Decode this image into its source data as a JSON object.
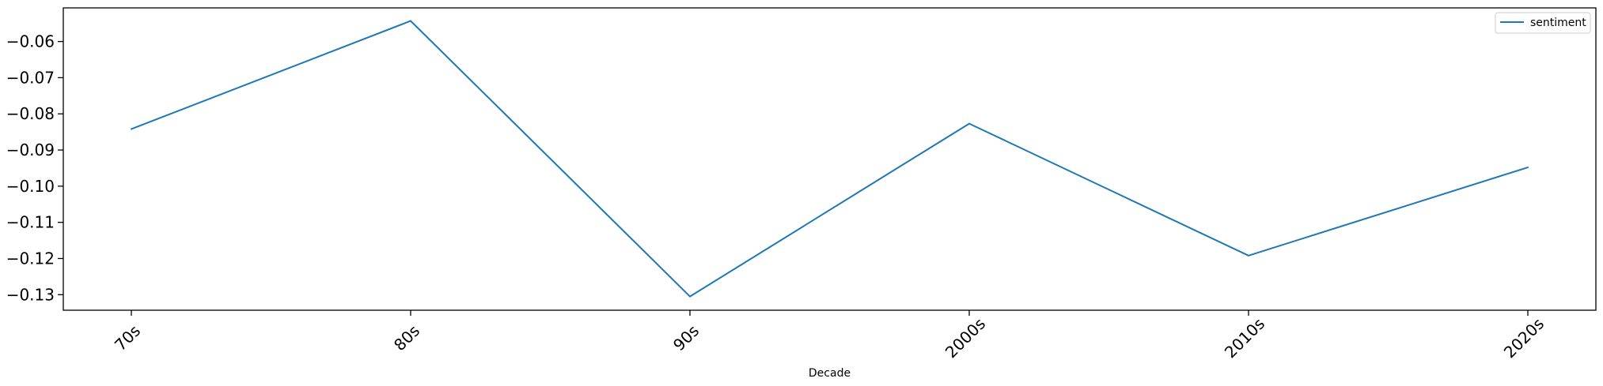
{
  "chart_data": {
    "type": "line",
    "title": "",
    "xlabel": "Decade",
    "ylabel": "",
    "categories": [
      "70s",
      "80s",
      "90s",
      "2000s",
      "2010s",
      "2020s"
    ],
    "series": [
      {
        "name": "sentiment",
        "color": "#1f77b4",
        "values": [
          -0.0842,
          -0.0543,
          -0.1305,
          -0.0827,
          -0.1192,
          -0.0948
        ]
      }
    ],
    "ylim": [
      -0.1343,
      -0.0507
    ],
    "yticks": [
      -0.13,
      -0.12,
      -0.11,
      -0.1,
      -0.09,
      -0.08,
      -0.07,
      -0.06
    ],
    "ytick_labels": [
      "−0.13",
      "−0.12",
      "−0.11",
      "−0.10",
      "−0.09",
      "−0.08",
      "−0.07",
      "−0.06"
    ],
    "xtick_rotation": -45,
    "grid": false,
    "legend": "top-right"
  }
}
